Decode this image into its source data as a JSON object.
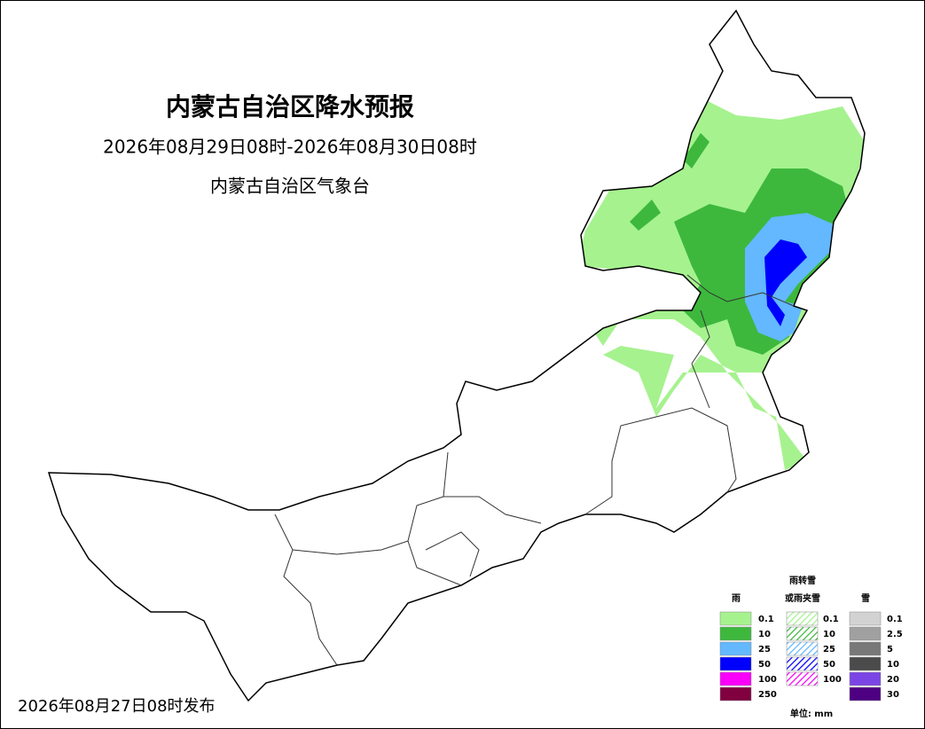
{
  "header": {
    "title": "内蒙古自治区降水预报",
    "period": "2026年08月29日08时-2026年08月30日08时",
    "agency": "内蒙古自治区气象台"
  },
  "legend": {
    "rain": {
      "title": "雨",
      "items": [
        {
          "label": "0.1",
          "color": "#a6f28f"
        },
        {
          "label": "10",
          "color": "#3db83d"
        },
        {
          "label": "25",
          "color": "#63b8ff"
        },
        {
          "label": "50",
          "color": "#0000fe"
        },
        {
          "label": "100",
          "color": "#fa00fa"
        },
        {
          "label": "250",
          "color": "#810040"
        }
      ]
    },
    "mixed": {
      "title_lines": [
        "雨转雪",
        "或雨夹雪"
      ],
      "items": [
        {
          "label": "0.1",
          "color": "#a6f28f"
        },
        {
          "label": "10",
          "color": "#3db83d"
        },
        {
          "label": "25",
          "color": "#63b8ff"
        },
        {
          "label": "50",
          "color": "#0000fe"
        },
        {
          "label": "100",
          "color": "#fa00fa"
        }
      ]
    },
    "snow": {
      "title": "雪",
      "items": [
        {
          "label": "0.1",
          "color": "#d2d2d2"
        },
        {
          "label": "2.5",
          "color": "#a0a0a0"
        },
        {
          "label": "5",
          "color": "#787878"
        },
        {
          "label": "10",
          "color": "#4b4b4b"
        },
        {
          "label": "20",
          "color": "#7b45e6"
        },
        {
          "label": "30",
          "color": "#4e0082"
        }
      ]
    },
    "unit": "单位: mm"
  },
  "issued": "2026年08月27日08时发布"
}
